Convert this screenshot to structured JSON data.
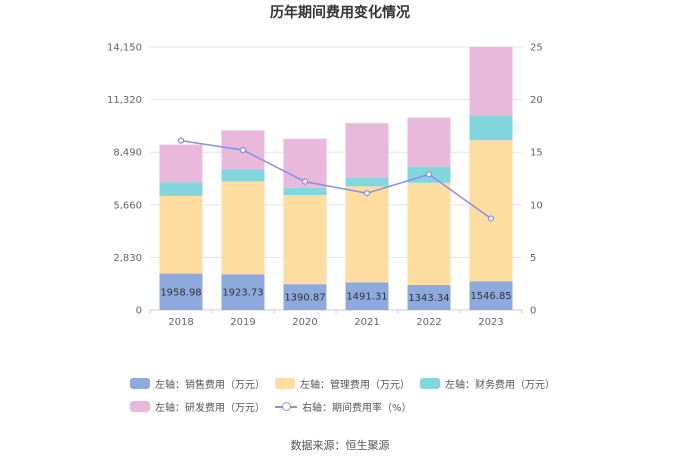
{
  "chart_data": {
    "type": "bar",
    "title": "历年期间费用变化情况",
    "categories": [
      "2018",
      "2019",
      "2020",
      "2021",
      "2022",
      "2023"
    ],
    "y_left": {
      "ticks": [
        "0",
        "2,830",
        "5,660",
        "8,490",
        "11,320",
        "14,150"
      ],
      "range": [
        0,
        14150
      ]
    },
    "y_right": {
      "ticks": [
        "0",
        "5",
        "10",
        "15",
        "20",
        "25"
      ],
      "range": [
        0,
        25
      ]
    },
    "series": [
      {
        "name": "左轴：销售费用（万元）",
        "axis": "left",
        "stack": true,
        "color": "#8eaadc",
        "values": [
          1958.98,
          1923.73,
          1390.87,
          1491.31,
          1343.34,
          1546.85
        ],
        "labels": [
          "1958.98",
          "1923.73",
          "1390.87",
          "1491.31",
          "1343.34",
          "1546.85"
        ]
      },
      {
        "name": "左轴：管理费用（万元）",
        "axis": "left",
        "stack": true,
        "color": "#fddea0",
        "values": [
          4180,
          5000,
          4790,
          5160,
          5500,
          7590
        ]
      },
      {
        "name": "左轴：财务费用（万元）",
        "axis": "left",
        "stack": true,
        "color": "#82d6dd",
        "values": [
          720,
          640,
          390,
          470,
          870,
          1300
        ]
      },
      {
        "name": "左轴：研发费用（万元）",
        "axis": "left",
        "stack": true,
        "color": "#e8b9da",
        "values": [
          2040,
          2100,
          2640,
          2930,
          2640,
          3720
        ]
      },
      {
        "name": "右轴：期间费用率（%）",
        "axis": "right",
        "type": "line",
        "color": "#8a8de6",
        "values": [
          16.1,
          15.2,
          12.2,
          11.1,
          12.9,
          8.7
        ]
      }
    ],
    "grid": true,
    "legend_position": "bottom"
  },
  "source_text": "数据来源：恒生聚源"
}
